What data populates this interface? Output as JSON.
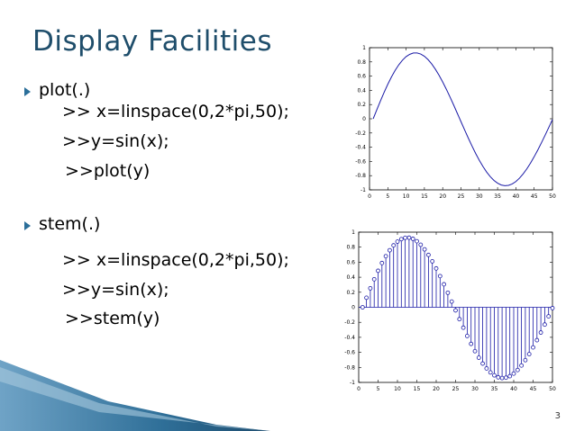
{
  "slide": {
    "title": "Display Facilities",
    "page_number": "3",
    "bullets": [
      {
        "label": "plot(.)",
        "lines": [
          ">> x=linspace(0,2*pi,50);",
          ">>y=sin(x);",
          ">>plot(y)"
        ]
      },
      {
        "label": "stem(.)",
        "lines": [
          ">> x=linspace(0,2*pi,50);",
          ">>y=sin(x);",
          ">>stem(y)"
        ]
      }
    ],
    "colors": {
      "title": "#1f4e6b",
      "bullet": "#2b6f9a",
      "plot_line": "#1a1aa6"
    }
  },
  "chart_data": [
    {
      "type": "line",
      "x": [
        1,
        2,
        3,
        4,
        5,
        6,
        7,
        8,
        9,
        10,
        11,
        12,
        13,
        14,
        15,
        16,
        17,
        18,
        19,
        20,
        21,
        22,
        23,
        24,
        25,
        26,
        27,
        28,
        29,
        30,
        31,
        32,
        33,
        34,
        35,
        36,
        37,
        38,
        39,
        40,
        41,
        42,
        43,
        44,
        45,
        46,
        47,
        48,
        49,
        50
      ],
      "values": [
        0,
        0.127,
        0.253,
        0.373,
        0.486,
        0.589,
        0.68,
        0.759,
        0.824,
        0.874,
        0.907,
        0.925,
        0.926,
        0.911,
        0.879,
        0.832,
        0.771,
        0.697,
        0.612,
        0.517,
        0.415,
        0.306,
        0.193,
        0.076,
        -0.041,
        -0.158,
        -0.272,
        -0.382,
        -0.487,
        -0.584,
        -0.671,
        -0.749,
        -0.814,
        -0.867,
        -0.906,
        -0.932,
        -0.942,
        -0.937,
        -0.917,
        -0.883,
        -0.835,
        -0.775,
        -0.704,
        -0.623,
        -0.534,
        -0.438,
        -0.336,
        -0.23,
        -0.121,
        -0.011
      ],
      "xlim": [
        0,
        50
      ],
      "ylim": [
        -1,
        1
      ],
      "xticks": [
        0,
        5,
        10,
        15,
        20,
        25,
        30,
        35,
        40,
        45,
        50
      ],
      "yticks": [
        -1,
        -0.8,
        -0.6,
        -0.4,
        -0.2,
        0,
        0.2,
        0.4,
        0.6,
        0.8,
        1
      ]
    },
    {
      "type": "stem",
      "x": [
        1,
        2,
        3,
        4,
        5,
        6,
        7,
        8,
        9,
        10,
        11,
        12,
        13,
        14,
        15,
        16,
        17,
        18,
        19,
        20,
        21,
        22,
        23,
        24,
        25,
        26,
        27,
        28,
        29,
        30,
        31,
        32,
        33,
        34,
        35,
        36,
        37,
        38,
        39,
        40,
        41,
        42,
        43,
        44,
        45,
        46,
        47,
        48,
        49,
        50
      ],
      "values": [
        0,
        0.127,
        0.253,
        0.373,
        0.486,
        0.589,
        0.68,
        0.759,
        0.824,
        0.874,
        0.907,
        0.925,
        0.926,
        0.911,
        0.879,
        0.832,
        0.771,
        0.697,
        0.612,
        0.517,
        0.415,
        0.306,
        0.193,
        0.076,
        -0.041,
        -0.158,
        -0.272,
        -0.382,
        -0.487,
        -0.584,
        -0.671,
        -0.749,
        -0.814,
        -0.867,
        -0.906,
        -0.932,
        -0.942,
        -0.937,
        -0.917,
        -0.883,
        -0.835,
        -0.775,
        -0.704,
        -0.623,
        -0.534,
        -0.438,
        -0.336,
        -0.23,
        -0.121,
        -0.011
      ],
      "xlim": [
        0,
        50
      ],
      "ylim": [
        -1,
        1
      ],
      "xticks": [
        0,
        5,
        10,
        15,
        20,
        25,
        30,
        35,
        40,
        45,
        50
      ],
      "yticks": [
        -1,
        -0.8,
        -0.6,
        -0.4,
        -0.2,
        0,
        0.2,
        0.4,
        0.6,
        0.8,
        1
      ]
    }
  ]
}
